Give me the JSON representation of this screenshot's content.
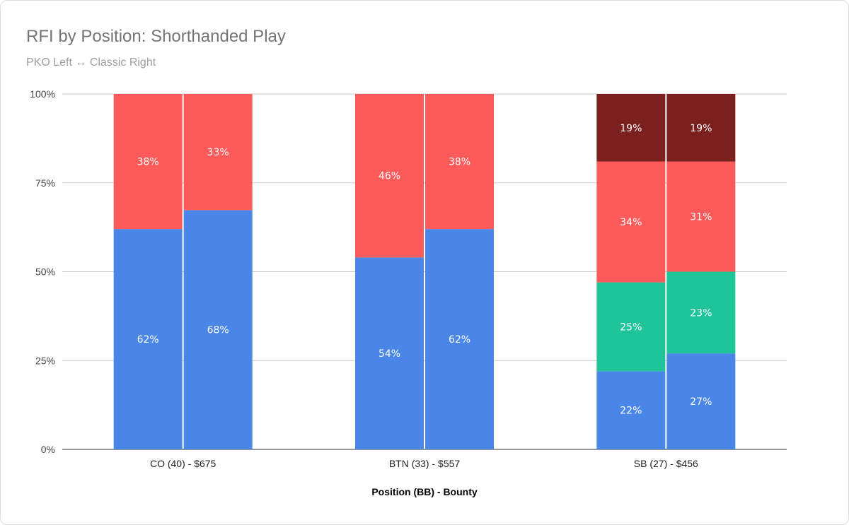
{
  "chart_data": {
    "type": "bar",
    "stacked": true,
    "normalized": true,
    "title": "RFI by Position: Shorthanded Play",
    "subtitle": "PKO Left ↔ Classic Right",
    "xlabel": "Position (BB) - Bounty",
    "ylabel": "",
    "ylim": [
      0,
      100
    ],
    "ytick_labels": [
      "0%",
      "25%",
      "50%",
      "75%",
      "100%"
    ],
    "yticks": [
      0,
      25,
      50,
      75,
      100
    ],
    "grid": true,
    "legend": "none",
    "categories": [
      "CO (40) - $675",
      "BTN (33) - $557",
      "SB (27) - $456"
    ],
    "bars_per_category": [
      "PKO",
      "Classic"
    ],
    "series_colors": [
      "#4a86e8",
      "#1fc598",
      "#ff5a5a",
      "#7b1f1f"
    ],
    "bars": [
      {
        "category": 0,
        "segments": [
          {
            "series": 0,
            "value": 62,
            "label": "62%"
          },
          {
            "series": 2,
            "value": 38,
            "label": "38%"
          }
        ]
      },
      {
        "category": 0,
        "segments": [
          {
            "series": 0,
            "value": 68,
            "label": "68%"
          },
          {
            "series": 2,
            "value": 33,
            "label": "33%"
          }
        ]
      },
      {
        "category": 1,
        "segments": [
          {
            "series": 0,
            "value": 54,
            "label": "54%"
          },
          {
            "series": 2,
            "value": 46,
            "label": "46%"
          }
        ]
      },
      {
        "category": 1,
        "segments": [
          {
            "series": 0,
            "value": 62,
            "label": "62%"
          },
          {
            "series": 2,
            "value": 38,
            "label": "38%"
          }
        ]
      },
      {
        "category": 2,
        "segments": [
          {
            "series": 0,
            "value": 22,
            "label": "22%"
          },
          {
            "series": 1,
            "value": 25,
            "label": "25%"
          },
          {
            "series": 2,
            "value": 34,
            "label": "34%"
          },
          {
            "series": 3,
            "value": 19,
            "label": "19%"
          }
        ]
      },
      {
        "category": 2,
        "segments": [
          {
            "series": 0,
            "value": 27,
            "label": "27%"
          },
          {
            "series": 1,
            "value": 23,
            "label": "23%"
          },
          {
            "series": 2,
            "value": 31,
            "label": "31%"
          },
          {
            "series": 3,
            "value": 19,
            "label": "19%"
          }
        ]
      }
    ]
  }
}
